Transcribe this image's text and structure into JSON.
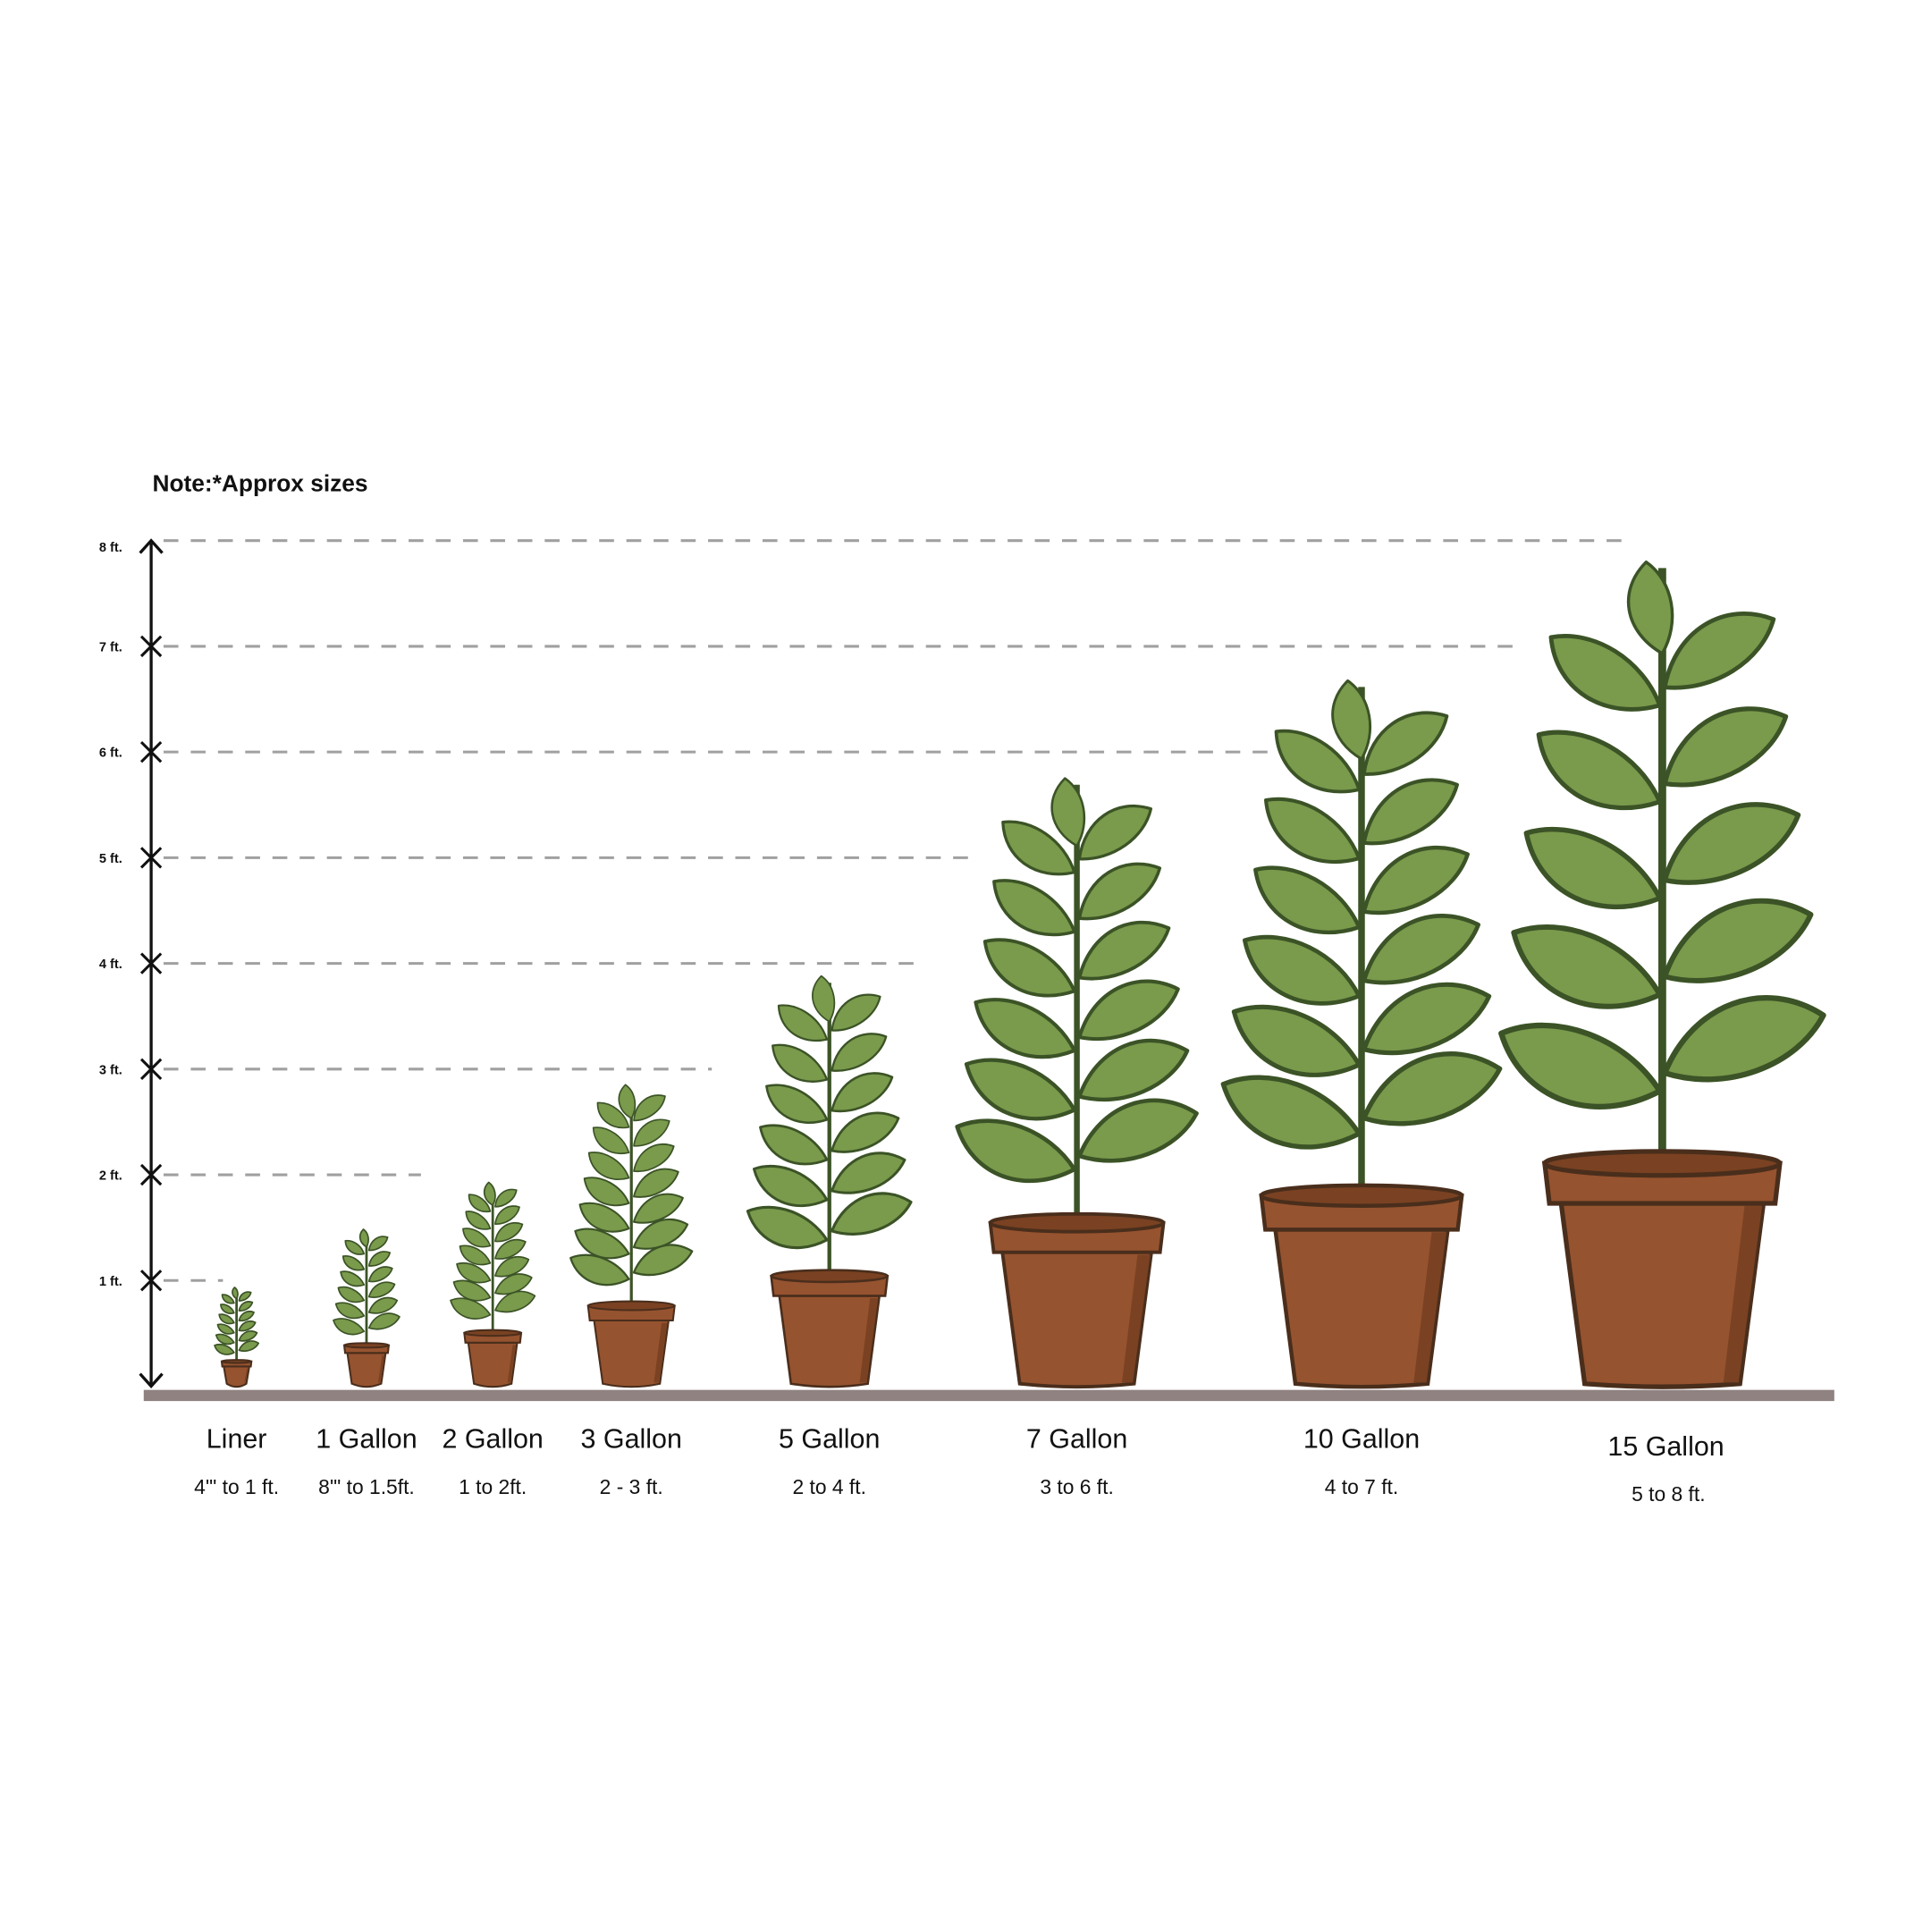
{
  "note": "Note:*Approx sizes",
  "chart_data": {
    "type": "pictorial-bar",
    "title": "",
    "ylabel": "",
    "ylim": [
      0,
      8
    ],
    "y_ticks": [
      "1 ft.",
      "2 ft.",
      "3 ft.",
      "4 ft.",
      "5 ft.",
      "6 ft.",
      "7 ft.",
      "8 ft."
    ],
    "categories": [
      "Liner",
      "1 Gallon",
      "2 Gallon",
      "3 Gallon",
      "5 Gallon",
      "7 Gallon",
      "10 Gallon",
      "15 Gallon"
    ],
    "ranges": [
      "4'\" to 1 ft.",
      "8'\" to 1.5ft.",
      "1 to 2ft.",
      "2 - 3 ft.",
      "2 to 4 ft.",
      "3 to 6 ft.",
      "4 to 7 ft.",
      "5 to 8 ft."
    ],
    "max_height_ft": [
      1,
      1.5,
      2,
      3,
      4,
      6,
      7,
      8
    ],
    "grid": "dashed reference lines at each foot",
    "colors": {
      "leaf": "#7a9a4c",
      "leaf_outline": "#3b5326",
      "pot": "#96532f",
      "pot_shadow": "#7a4222",
      "pot_outline": "#4a2e1c",
      "ground": "#8f8280",
      "gridline": "#a0a0a0"
    }
  }
}
